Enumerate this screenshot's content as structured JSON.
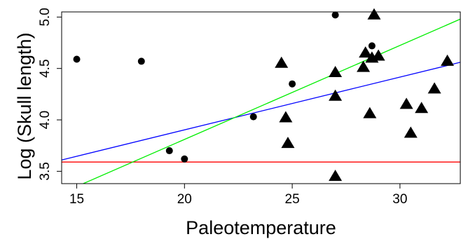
{
  "chart_data": {
    "type": "scatter",
    "title": "",
    "xlabel": "Paleotemperature",
    "ylabel": "Log (Skull length)",
    "xlim": [
      14.3,
      32.8
    ],
    "ylim": [
      3.38,
      5.05
    ],
    "x_ticks": [
      15,
      20,
      25,
      30
    ],
    "x_tick_labels": [
      "15",
      "20",
      "25",
      "30"
    ],
    "y_ticks": [
      3.5,
      4.0,
      4.5,
      5.0
    ],
    "y_tick_labels": [
      "3.5",
      "4.0",
      "4.5",
      "5.0"
    ],
    "grid": false,
    "legend": "none",
    "series": [
      {
        "marker": "circle",
        "color": "#000000",
        "points": [
          {
            "x": 15.0,
            "y": 4.59
          },
          {
            "x": 18.0,
            "y": 4.57
          },
          {
            "x": 19.3,
            "y": 3.7
          },
          {
            "x": 20.0,
            "y": 3.62
          },
          {
            "x": 23.2,
            "y": 4.03
          },
          {
            "x": 25.0,
            "y": 4.35
          },
          {
            "x": 27.0,
            "y": 5.02
          },
          {
            "x": 28.7,
            "y": 4.72
          }
        ]
      },
      {
        "marker": "triangle",
        "color": "#000000",
        "points": [
          {
            "x": 24.5,
            "y": 4.55
          },
          {
            "x": 24.7,
            "y": 4.02
          },
          {
            "x": 24.8,
            "y": 3.77
          },
          {
            "x": 27.0,
            "y": 4.46
          },
          {
            "x": 27.0,
            "y": 4.23
          },
          {
            "x": 27.0,
            "y": 3.45
          },
          {
            "x": 28.3,
            "y": 4.51
          },
          {
            "x": 28.4,
            "y": 4.65
          },
          {
            "x": 28.6,
            "y": 4.06
          },
          {
            "x": 28.7,
            "y": 4.6
          },
          {
            "x": 28.8,
            "y": 5.02
          },
          {
            "x": 29.0,
            "y": 4.62
          },
          {
            "x": 30.3,
            "y": 4.15
          },
          {
            "x": 30.5,
            "y": 3.87
          },
          {
            "x": 31.0,
            "y": 4.11
          },
          {
            "x": 31.6,
            "y": 4.3
          },
          {
            "x": 32.2,
            "y": 4.57
          }
        ]
      }
    ],
    "lines": [
      {
        "color": "#ff0000",
        "x": [
          14.3,
          32.8
        ],
        "y": [
          3.59,
          3.59
        ]
      },
      {
        "color": "#0000ff",
        "x": [
          14.3,
          32.8
        ],
        "y": [
          3.61,
          4.56
        ]
      },
      {
        "color": "#00ee00",
        "x": [
          15.3,
          32.8
        ],
        "y": [
          3.38,
          4.98
        ]
      }
    ]
  }
}
